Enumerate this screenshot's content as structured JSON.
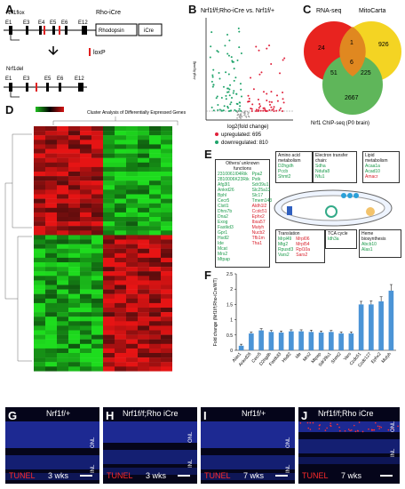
{
  "panels": {
    "A": "A",
    "B": "B",
    "C": "C",
    "D": "D",
    "E": "E",
    "F": "F",
    "G": "G",
    "H": "H",
    "I": "I",
    "J": "J"
  },
  "panelA": {
    "gene_flox": "Nrf1flox",
    "rho_icre": "Rho-iCre",
    "rhodopsin": "Rhodopsin",
    "icre": "iCre",
    "loxp": "loxP",
    "gene_del": "Nrf1del",
    "exons_top": [
      "E1",
      "E3",
      "E4",
      "E5",
      "E6",
      "E12"
    ],
    "exons_bottom": [
      "E1",
      "E3",
      "E5",
      "E6",
      "E12"
    ]
  },
  "panelB": {
    "title": "Nrf1f/f;Rho-iCre vs. Nrf1f/+",
    "ylabel": "-log10(padj)",
    "xlabel": "log2(fold change)",
    "up_label": "upregulated: 695",
    "down_label": "downregulated: 810",
    "colors": {
      "up": "#e0203a",
      "down": "#1fa36a"
    }
  },
  "panelC": {
    "labels": [
      "RNA-seq",
      "MitoCarta",
      "Nrf1 ChIP-seq (P0 brain)"
    ],
    "values": {
      "rna_only": "24",
      "rna_mito": "1",
      "mito_only": "926",
      "center": "6",
      "rna_chip": "51",
      "mito_chip": "225",
      "chip_only": "2667"
    },
    "colors": {
      "rna": "#e8231f",
      "mito": "#f4d423",
      "chip": "#5fb65a"
    }
  },
  "panelD": {
    "title": "Cluster Analysis of Differentially Expressed Genes",
    "colors": {
      "low": "#1fbf1f",
      "mid": "#000000",
      "high": "#d51414"
    }
  },
  "panelE": {
    "others_title": "Others/ unknown functions",
    "others_col1": [
      "2310061I04Rik",
      "2810006K23Rik",
      "Afg3l1",
      "Ankrd26",
      "Bphl",
      "Cecr5",
      "Clstl1",
      "Dhrs7b",
      "Dna2",
      "Exog",
      "Fastkd3",
      "Gpr1",
      "Hsdl2",
      "Ide",
      "Mcat",
      "Mrs2",
      "Mtpap"
    ],
    "others_col2": [
      "Ppa2",
      "Pstk",
      "Sdr39u1",
      "Slc25a13",
      "Slc17",
      "Tmem143",
      "Aldh1l2",
      "Ccdc51",
      "Ephx2",
      "Ibsa57",
      "Mutyh",
      "Nucb2",
      "Tfb1m",
      "Tha1"
    ],
    "amino_title": "Amino acid metabolism",
    "amino": [
      "D2hgdh",
      "Pccb",
      "Shmt2"
    ],
    "etc_title": "Electron transfer chain:",
    "etc": [
      "Sdha",
      "Ndufa8",
      "Nfu1"
    ],
    "lipid_title": "Lipid metabolism",
    "lipid": [
      "Acaa1a",
      "Acad10",
      "Amacr"
    ],
    "translation_title": "Translation",
    "translation_col1": [
      "Mrpl49",
      "Mtg2",
      "Rpusd3",
      "Vars2"
    ],
    "translation_col2": [
      "Mrpl06",
      "Mrpl54",
      "Rpl10a",
      "Sars2"
    ],
    "tca_title": "TCA cycle",
    "tca": [
      "Idh3a"
    ],
    "heme_title": "Heme biosynthesis",
    "heme": [
      "Abcb10",
      "Alas1"
    ]
  },
  "chart_data": {
    "type": "bar",
    "ylabel": "Fold change (Nrf1f/f;Rho-iCre/WT)",
    "ylim": [
      0,
      2.5
    ],
    "yticks": [
      "0",
      "0.5",
      "1",
      "1.5",
      "2",
      "2.5"
    ],
    "categories": [
      "Alas1",
      "Ankrd26",
      "Cecr5",
      "D2hgdh",
      "Fastkd3",
      "Hsdl2",
      "Ide",
      "Mrs2",
      "Mtpap",
      "Sdr39u1",
      "Shmt2",
      "Vars",
      "Ccdc51",
      "Ccdc127",
      "Ephx2",
      "Mutyh"
    ],
    "values": [
      0.15,
      0.55,
      0.65,
      0.6,
      0.58,
      0.62,
      0.62,
      0.6,
      0.58,
      0.6,
      0.55,
      0.55,
      1.5,
      1.5,
      1.6,
      1.95
    ],
    "errors": [
      0.05,
      0.05,
      0.06,
      0.05,
      0.05,
      0.05,
      0.05,
      0.06,
      0.05,
      0.05,
      0.05,
      0.05,
      0.1,
      0.12,
      0.15,
      0.2
    ],
    "bar_color": "#4b94d6"
  },
  "micro": [
    {
      "genotype": "Nrf1f/+",
      "age": "3 wks",
      "tunel": "TUNEL",
      "onl": "ONL",
      "inl": "INL"
    },
    {
      "genotype": "Nrf1f/f;Rho iCre",
      "age": "3 wks",
      "tunel": "TUNEL",
      "onl": "ONL",
      "inl": "INL"
    },
    {
      "genotype": "Nrf1f/+",
      "age": "7 wks",
      "tunel": "TUNEL",
      "onl": "ONL",
      "inl": "INL"
    },
    {
      "genotype": "Nrf1f/f;Rho iCre",
      "age": "7 wks",
      "tunel": "TUNEL",
      "onl": "ONL",
      "inl": "INL"
    }
  ]
}
